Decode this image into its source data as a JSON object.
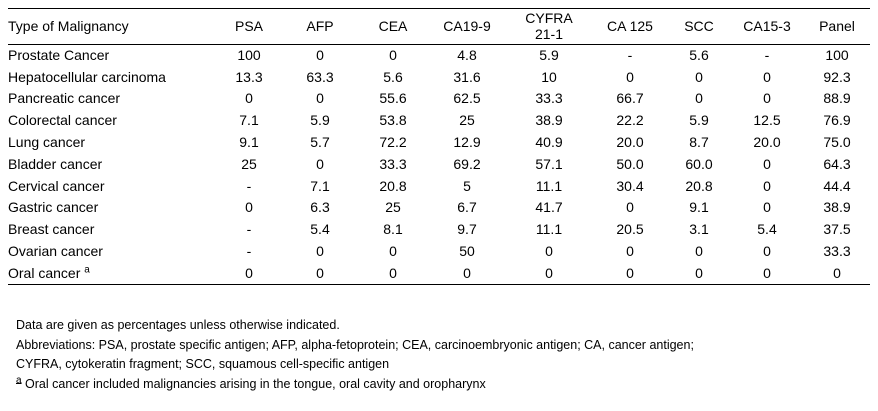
{
  "table": {
    "headers": {
      "type": "Type of Malignancy",
      "psa": "PSA",
      "afp": "AFP",
      "cea": "CEA",
      "ca199": "CA19-9",
      "cyfra": "CYFRA 21-1",
      "ca125": "CA 125",
      "scc": "SCC",
      "ca153": "CA15-3",
      "panel": "Panel"
    },
    "rows": [
      {
        "name": "Prostate Cancer",
        "mark": "",
        "values": [
          "100",
          "0",
          "0",
          "4.8",
          "5.9",
          "-",
          "5.6",
          "-",
          "100"
        ]
      },
      {
        "name": "Hepatocellular carcinoma",
        "mark": "",
        "values": [
          "13.3",
          "63.3",
          "5.6",
          "31.6",
          "10",
          "0",
          "0",
          "0",
          "92.3"
        ]
      },
      {
        "name": "Pancreatic cancer",
        "mark": "",
        "values": [
          "0",
          "0",
          "55.6",
          "62.5",
          "33.3",
          "66.7",
          "0",
          "0",
          "88.9"
        ]
      },
      {
        "name": "Colorectal cancer",
        "mark": "",
        "values": [
          "7.1",
          "5.9",
          "53.8",
          "25",
          "38.9",
          "22.2",
          "5.9",
          "12.5",
          "76.9"
        ]
      },
      {
        "name": "Lung cancer",
        "mark": "",
        "values": [
          "9.1",
          "5.7",
          "72.2",
          "12.9",
          "40.9",
          "20.0",
          "8.7",
          "20.0",
          "75.0"
        ]
      },
      {
        "name": "Bladder cancer",
        "mark": "",
        "values": [
          "25",
          "0",
          "33.3",
          "69.2",
          "57.1",
          "50.0",
          "60.0",
          "0",
          "64.3"
        ]
      },
      {
        "name": "Cervical cancer",
        "mark": "",
        "values": [
          "-",
          "7.1",
          "20.8",
          "5",
          "11.1",
          "30.4",
          "20.8",
          "0",
          "44.4"
        ]
      },
      {
        "name": "Gastric cancer",
        "mark": "",
        "values": [
          "0",
          "6.3",
          "25",
          "6.7",
          "41.7",
          "0",
          "9.1",
          "0",
          "38.9"
        ]
      },
      {
        "name": "Breast cancer",
        "mark": "",
        "values": [
          "-",
          "5.4",
          "8.1",
          "9.7",
          "11.1",
          "20.5",
          "3.1",
          "5.4",
          "37.5"
        ]
      },
      {
        "name": "Ovarian cancer",
        "mark": "",
        "values": [
          "-",
          "0",
          "0",
          "50",
          "0",
          "0",
          "0",
          "0",
          "33.3"
        ]
      },
      {
        "name": "Oral cancer",
        "mark": "a",
        "values": [
          "0",
          "0",
          "0",
          "0",
          "0",
          "0",
          "0",
          "0",
          "0"
        ]
      }
    ]
  },
  "notes": {
    "data_note": "Data are given as percentages unless otherwise indicated.",
    "abbreviations_1": "Abbreviations: PSA, prostate specific antigen; AFP, alpha-fetoprotein; CEA, carcinoembryonic antigen; CA, cancer antigen;",
    "abbreviations_2": "CYFRA, cytokeratin fragment; SCC, squamous cell-specific antigen",
    "footnote_mark": "a",
    "footnote_text": " Oral cancer included malignancies arising in the tongue, oral cavity and oropharynx"
  }
}
